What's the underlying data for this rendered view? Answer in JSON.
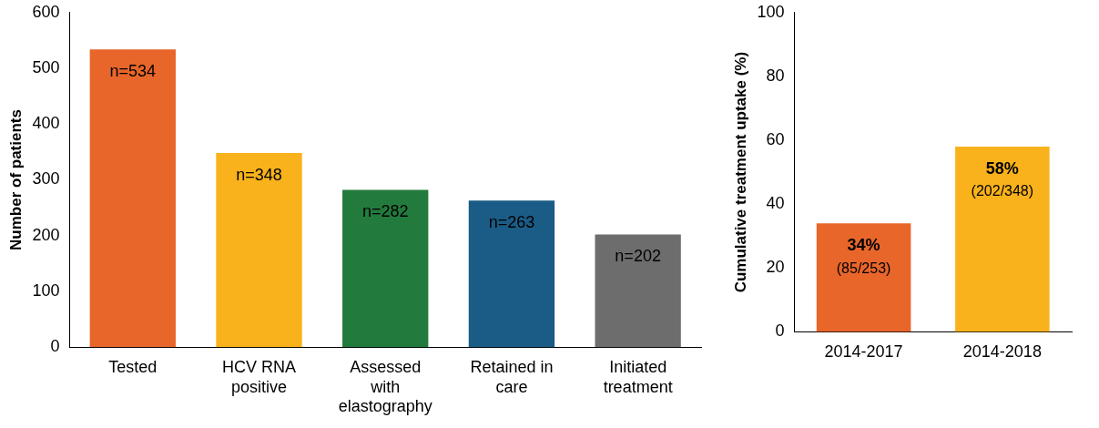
{
  "chart_data": [
    {
      "type": "bar",
      "ylabel": "Number of patients",
      "categories": [
        "Tested",
        "HCV RNA positive",
        "Assessed with elastography",
        "Retained in care",
        "Initiated treatment"
      ],
      "values": [
        534,
        348,
        282,
        263,
        202
      ],
      "colors": [
        "#e8662a",
        "#f9b21b",
        "#237a3d",
        "#1a5c86",
        "#6d6d6d"
      ],
      "value_labels": [
        "n=534",
        "n=348",
        "n=282",
        "n=263",
        "n=202"
      ],
      "ylim": [
        0,
        600
      ],
      "yticks": [
        0,
        100,
        200,
        300,
        400,
        500,
        600
      ],
      "grid": false,
      "legend": false
    },
    {
      "type": "bar",
      "ylabel": "Cumulative treatment uptake (%)",
      "categories": [
        "2014-2017",
        "2014-2018"
      ],
      "values": [
        34,
        58
      ],
      "colors": [
        "#e8662a",
        "#f9b21b"
      ],
      "value_labels": [
        "34% (85/253)",
        "58% (202/348)"
      ],
      "ylim": [
        0,
        100
      ],
      "yticks": [
        0,
        20,
        40,
        60,
        80,
        100
      ],
      "grid": false,
      "legend": false
    }
  ]
}
